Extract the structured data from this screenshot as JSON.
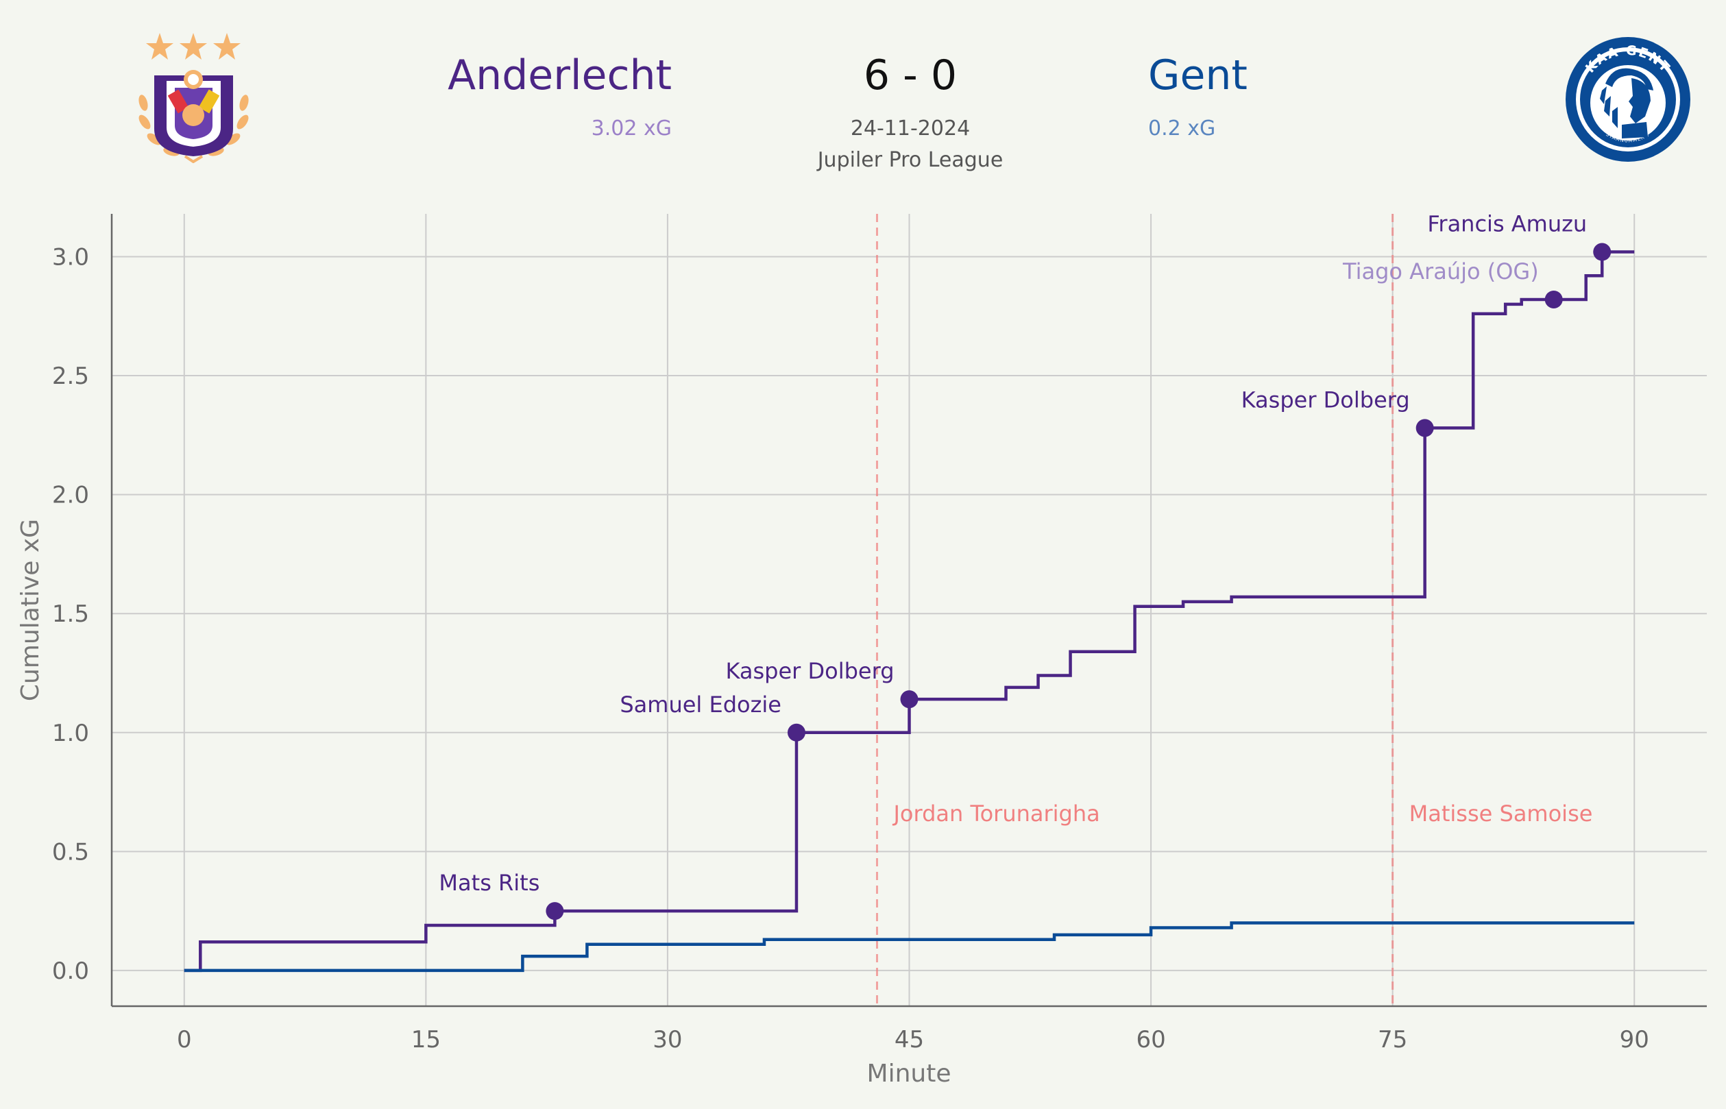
{
  "header": {
    "home_team": "Anderlecht",
    "home_xg": "3.02 xG",
    "away_team": "Gent",
    "away_xg": "0.2 xG",
    "score": "6 - 0",
    "date": "24-11-2024",
    "competition": "Jupiler Pro League",
    "home_logo_icon": "anderlecht-crest-icon",
    "away_logo_icon": "kaa-gent-crest-icon",
    "away_logo_text": "KAA GENT",
    "away_logo_subtext": "STAMNUMMER 7"
  },
  "colors": {
    "home": "#4b2585",
    "away": "#0a4b96",
    "red_card": "#f08080",
    "own_goal_label": "#a08cc8",
    "crest_gold": "#f5b46e",
    "background": "#f4f6f0"
  },
  "chart_data": {
    "type": "line",
    "step": true,
    "xlabel": "Minute",
    "ylabel": "Cumulative xG",
    "xlim": [
      -4.5,
      94.5
    ],
    "ylim": [
      -0.15,
      3.18
    ],
    "xticks": [
      0,
      15,
      30,
      45,
      60,
      75,
      90
    ],
    "yticks": [
      0.0,
      0.5,
      1.0,
      1.5,
      2.0,
      2.5,
      3.0
    ],
    "ytick_labels": [
      "0.0",
      "0.5",
      "1.0",
      "1.5",
      "2.0",
      "2.5",
      "3.0"
    ],
    "grid": true,
    "series": [
      {
        "name": "Anderlecht",
        "x": [
          0,
          1,
          15,
          23,
          38,
          45,
          51,
          53,
          55,
          59,
          62,
          65,
          77,
          80,
          82,
          83,
          85,
          87,
          88,
          90
        ],
        "y": [
          0,
          0.12,
          0.19,
          0.25,
          1.0,
          1.14,
          1.19,
          1.24,
          1.34,
          1.53,
          1.55,
          1.57,
          2.28,
          2.76,
          2.8,
          2.82,
          2.82,
          2.92,
          3.02,
          3.02
        ]
      },
      {
        "name": "Gent",
        "x": [
          0,
          21,
          25,
          36,
          54,
          60,
          65,
          90
        ],
        "y": [
          0,
          0.06,
          0.11,
          0.13,
          0.15,
          0.18,
          0.2,
          0.2
        ]
      }
    ],
    "goals": [
      {
        "minute": 23,
        "xg": 0.25,
        "player": "Mats Rits",
        "own_goal": false
      },
      {
        "minute": 38,
        "xg": 1.0,
        "player": "Samuel Edozie",
        "own_goal": false
      },
      {
        "minute": 45,
        "xg": 1.14,
        "player": "Kasper Dolberg",
        "own_goal": false
      },
      {
        "minute": 77,
        "xg": 2.28,
        "player": "Kasper Dolberg",
        "own_goal": false
      },
      {
        "minute": 85,
        "xg": 2.82,
        "player": "Tiago Araújo (OG)",
        "own_goal": true
      },
      {
        "minute": 88,
        "xg": 3.02,
        "player": "Francis Amuzu",
        "own_goal": false
      }
    ],
    "red_cards": [
      {
        "minute": 43,
        "player": "Jordan Torunarigha"
      },
      {
        "minute": 75,
        "player": "Matisse Samoise"
      }
    ]
  }
}
